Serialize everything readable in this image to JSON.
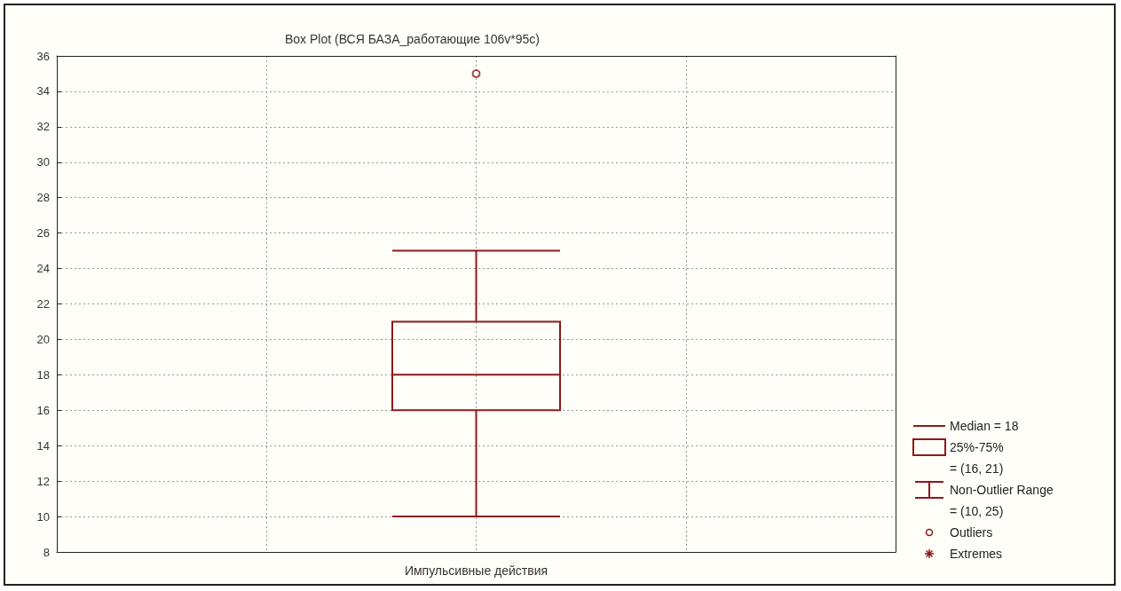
{
  "chart_data": {
    "type": "box",
    "title": "Box Plot (ВСЯ БАЗА_работающие 106v*95c)",
    "categories": [
      "Импульсивные действия"
    ],
    "series": [
      {
        "color": "#8b1a1a",
        "boxes": [
          {
            "low": 10,
            "q1": 16,
            "median": 18,
            "q3": 21,
            "high": 25,
            "outliers": [
              35
            ]
          }
        ]
      }
    ],
    "ylim": [
      8,
      36
    ],
    "yticks": [
      8,
      10,
      12,
      14,
      16,
      18,
      20,
      22,
      24,
      26,
      28,
      30,
      32,
      34,
      36
    ],
    "grid": true,
    "annotations": [
      "Median = 18",
      "25%-75%",
      "= (16, 21)",
      "Non-Outlier Range",
      "= (10, 25)",
      "Outliers",
      "Extremes"
    ]
  }
}
